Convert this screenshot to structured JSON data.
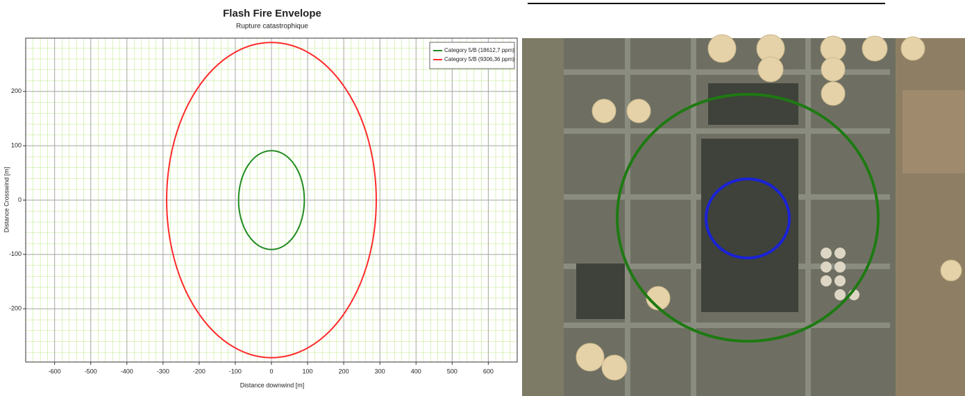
{
  "chart_data": {
    "type": "envelope",
    "title": "Flash Fire Envelope",
    "subtitle": "Rupture catastrophique",
    "x_label": "Distance downwind [m]",
    "y_label": "Distance Crosswind [m]",
    "xlim": [
      -680,
      680
    ],
    "ylim": [
      -298,
      298
    ],
    "xticks": [
      -600,
      -500,
      -400,
      -300,
      -200,
      -100,
      0,
      100,
      200,
      300,
      400,
      500,
      600
    ],
    "yticks": [
      -200,
      -100,
      0,
      100,
      200
    ],
    "grid": true,
    "legend": "upper right",
    "series": [
      {
        "name": "Category 5/B (18612,7 ppm)",
        "color": "#1f8a1f",
        "radius": 91
      },
      {
        "name": "Category 5/B (9306,36 ppm)",
        "color": "#ff2a2a",
        "radius": 290
      }
    ]
  }
}
